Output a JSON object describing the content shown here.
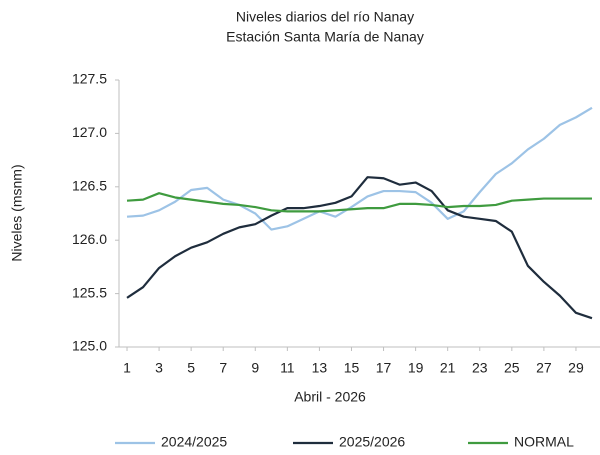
{
  "chart_data": {
    "type": "line",
    "title": "Niveles  diarios del río Nanay",
    "subtitle": "Estación Santa María de Nanay",
    "x_label": "Abril - 2026",
    "y_label": "Niveles  (msnm)",
    "x": [
      1,
      2,
      3,
      4,
      5,
      6,
      7,
      8,
      9,
      10,
      11,
      12,
      13,
      14,
      15,
      16,
      17,
      18,
      19,
      20,
      21,
      22,
      23,
      24,
      25,
      26,
      27,
      28,
      29,
      30
    ],
    "xlim": [
      0.5,
      30.5
    ],
    "xticks": [
      1,
      3,
      5,
      7,
      9,
      11,
      13,
      15,
      17,
      19,
      21,
      23,
      25,
      27,
      29
    ],
    "ylim": [
      125,
      127.5
    ],
    "yticks": [
      {
        "value": 127.5,
        "label": "127.5"
      },
      {
        "value": 127,
        "label": "127.0"
      },
      126.5,
      {
        "value": 126,
        "label": "126.0"
      },
      125.5,
      {
        "value": 125,
        "label": "125.0"
      }
    ],
    "grid": false,
    "legend": "bottom",
    "series": [
      {
        "name": "2024/2025",
        "color": "#9dc3e6",
        "values": [
          126.22,
          126.23,
          126.28,
          126.36,
          126.47,
          126.49,
          126.38,
          126.33,
          126.25,
          126.1,
          126.13,
          126.2,
          126.27,
          126.22,
          126.31,
          126.41,
          126.46,
          126.46,
          126.45,
          126.35,
          126.2,
          126.27,
          126.45,
          126.62,
          126.72,
          126.85,
          126.95,
          127.08,
          127.15,
          127.24
        ]
      },
      {
        "name": "2025/2026",
        "color": "#1f2d3d",
        "values": [
          125.46,
          125.56,
          125.74,
          125.85,
          125.93,
          125.98,
          126.06,
          126.12,
          126.15,
          126.23,
          126.3,
          126.3,
          126.32,
          126.35,
          126.41,
          126.59,
          126.58,
          126.52,
          126.54,
          126.46,
          126.28,
          126.22,
          126.2,
          126.18,
          126.08,
          125.76,
          125.61,
          125.48,
          125.32,
          125.27
        ]
      },
      {
        "name": "NORMAL",
        "color": "#3f9b3f",
        "values": [
          126.37,
          126.38,
          126.44,
          126.4,
          126.38,
          126.36,
          126.34,
          126.33,
          126.31,
          126.28,
          126.27,
          126.27,
          126.27,
          126.28,
          126.29,
          126.3,
          126.3,
          126.34,
          126.34,
          126.33,
          126.31,
          126.32,
          126.32,
          126.33,
          126.37,
          126.38,
          126.39,
          126.39,
          126.39,
          126.39
        ]
      }
    ]
  }
}
